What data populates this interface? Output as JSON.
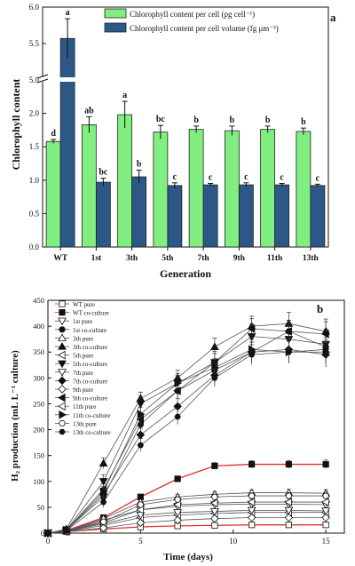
{
  "chart_data": [
    {
      "type": "bar",
      "panel_label": "a",
      "ylabel": "Chlorophyll content",
      "xlabel": "Generation",
      "y_axis_break": [
        2.5,
        5.0
      ],
      "ylim": [
        0,
        6.0
      ],
      "yticks_lower": [
        "0.0",
        "0.5",
        "1.0",
        "1.5",
        "2.0"
      ],
      "yticks_upper": [
        "5.0",
        "5.5",
        "6.0"
      ],
      "categories": [
        "WT",
        "1st",
        "3th",
        "5th",
        "7th",
        "9th",
        "11th",
        "13th"
      ],
      "legend_position": "top",
      "series": [
        {
          "name": "Chlorophyll content per cell (pg cell⁻¹)",
          "color": "#80ee80",
          "values": [
            1.58,
            1.83,
            1.98,
            1.72,
            1.76,
            1.74,
            1.76,
            1.73
          ],
          "errors": [
            0.03,
            0.12,
            0.2,
            0.1,
            0.05,
            0.07,
            0.05,
            0.05
          ],
          "letters": [
            "d",
            "ab",
            "a",
            "bc",
            "b",
            "b",
            "b",
            "b"
          ]
        },
        {
          "name": "Chlorophyll content per cell volume (fg μm⁻³)",
          "color": "#2c5888",
          "values": [
            5.57,
            0.97,
            1.05,
            0.92,
            0.93,
            0.93,
            0.93,
            0.92
          ],
          "errors": [
            0.27,
            0.06,
            0.1,
            0.04,
            0.02,
            0.03,
            0.02,
            0.02
          ],
          "letters": [
            "a",
            "bc",
            "b",
            "c",
            "c",
            "c",
            "c",
            "c"
          ]
        }
      ]
    },
    {
      "type": "line",
      "panel_label": "b",
      "xlabel": "Time (days)",
      "ylabel": "H₂ production (mL L⁻¹ culture)",
      "xlim": [
        0,
        16
      ],
      "ylim": [
        0,
        450
      ],
      "xticks": [
        0,
        5,
        10,
        15
      ],
      "yticks": [
        0,
        50,
        100,
        150,
        200,
        250,
        300,
        350,
        400,
        450
      ],
      "x": [
        0,
        1,
        3,
        5,
        7,
        9,
        11,
        13,
        15
      ],
      "legend_position": "top-left",
      "series": [
        {
          "name": "WT pure",
          "marker": "square-open",
          "color": "#e03030",
          "values": [
            0,
            3,
            8,
            12,
            14,
            15,
            16,
            16,
            16
          ],
          "err": 3
        },
        {
          "name": "WT co-culture",
          "marker": "square-filled",
          "color": "#e03030",
          "values": [
            0,
            5,
            30,
            70,
            105,
            130,
            133,
            133,
            133
          ],
          "err": 7
        },
        {
          "name": "1st pure",
          "marker": "triangle-down-open",
          "color": "#555555",
          "values": [
            0,
            4,
            25,
            45,
            52,
            55,
            56,
            56,
            55
          ],
          "err": 6
        },
        {
          "name": "1st co-culture",
          "marker": "circle-filled",
          "color": "#555555",
          "values": [
            0,
            6,
            70,
            210,
            275,
            315,
            350,
            390,
            360
          ],
          "err": 20
        },
        {
          "name": "3th pure",
          "marker": "triangle-up-open",
          "color": "#555555",
          "values": [
            0,
            4,
            28,
            60,
            70,
            75,
            78,
            78,
            77
          ],
          "err": 6
        },
        {
          "name": "3th co-culture",
          "marker": "triangle-up-filled",
          "color": "#555555",
          "values": [
            0,
            8,
            135,
            260,
            300,
            360,
            400,
            405,
            390
          ],
          "err": 20
        },
        {
          "name": "5th pure",
          "marker": "triangle-left-open",
          "color": "#555555",
          "values": [
            0,
            3,
            15,
            30,
            35,
            38,
            40,
            40,
            40
          ],
          "err": 5
        },
        {
          "name": "5th co-culture",
          "marker": "triangle-down-filled",
          "color": "#555555",
          "values": [
            0,
            6,
            100,
            250,
            290,
            330,
            380,
            375,
            365
          ],
          "err": 25
        },
        {
          "name": "7th pure",
          "marker": "triangle-down-open",
          "color": "#555555",
          "values": [
            0,
            3,
            18,
            35,
            40,
            42,
            44,
            44,
            43
          ],
          "err": 5
        },
        {
          "name": "7th co-culture",
          "marker": "diamond-filled",
          "color": "#555555",
          "values": [
            0,
            6,
            75,
            190,
            245,
            305,
            350,
            355,
            345
          ],
          "err": 20
        },
        {
          "name": "9th pure",
          "marker": "diamond-open",
          "color": "#555555",
          "values": [
            0,
            3,
            10,
            20,
            25,
            28,
            30,
            30,
            30
          ],
          "err": 4
        },
        {
          "name": "9th co-culture",
          "marker": "triangle-left-filled",
          "color": "#555555",
          "values": [
            0,
            6,
            85,
            220,
            275,
            330,
            395,
            390,
            385
          ],
          "err": 20
        },
        {
          "name": "11th pure",
          "marker": "triangle-left-open",
          "color": "#555555",
          "values": [
            0,
            4,
            20,
            45,
            55,
            58,
            60,
            60,
            60
          ],
          "err": 6
        },
        {
          "name": "11th co-culture",
          "marker": "triangle-right-filled",
          "color": "#555555",
          "values": [
            0,
            6,
            80,
            230,
            290,
            320,
            355,
            350,
            350
          ],
          "err": 20
        },
        {
          "name": "13th pure",
          "marker": "circle-open",
          "color": "#555555",
          "values": [
            0,
            4,
            22,
            55,
            65,
            70,
            72,
            72,
            72
          ],
          "err": 6
        },
        {
          "name": "13th co-culture",
          "marker": "hexagon-filled",
          "color": "#555555",
          "values": [
            0,
            5,
            60,
            170,
            225,
            300,
            345,
            350,
            355
          ],
          "err": 20
        }
      ]
    }
  ]
}
